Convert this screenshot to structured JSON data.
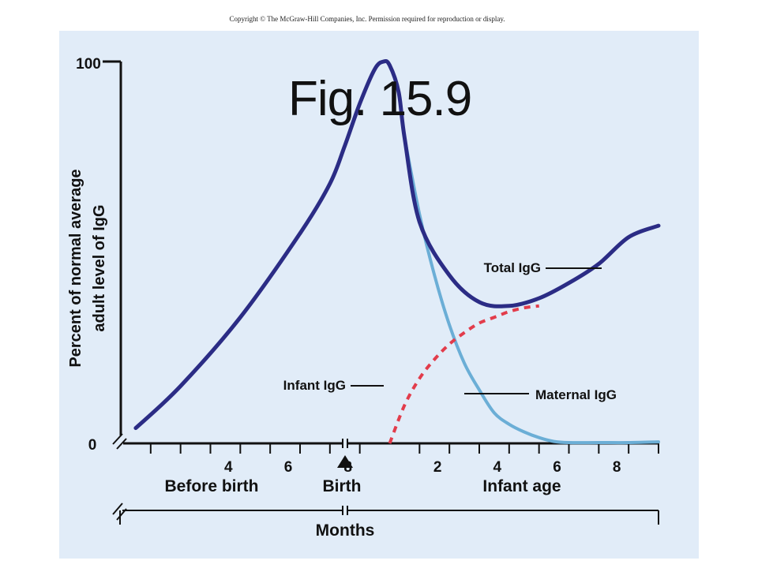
{
  "copyright": "Copyright © The McGraw-Hill Companies, Inc. Permission required for reproduction or display.",
  "figure_label": "Fig. 15.9",
  "colors": {
    "panel": "#e1ecf8",
    "total_igg": "#2b2c85",
    "maternal_igg": "#6baed6",
    "infant_igg": "#e23c4b",
    "axis": "#111111"
  },
  "chart_data": {
    "type": "line",
    "title": "",
    "ylabel": "Percent of normal average adult level of IgG",
    "xlabel": "Months",
    "ylim": [
      0,
      100
    ],
    "y_ticks": [
      "0",
      "100"
    ],
    "x_ticks": [
      "4",
      "6",
      "8",
      "2",
      "4",
      "6",
      "8"
    ],
    "x_axis": {
      "range_months": [
        -9,
        9
      ],
      "segments": [
        "Before birth",
        "Birth",
        "Infant age"
      ],
      "birth_marker": "▲"
    },
    "series": [
      {
        "name": "Total IgG",
        "style": "solid",
        "x": [
          -8.5,
          -7,
          -5,
          -3,
          -2,
          -1.5,
          -1,
          -0.5,
          -0.2,
          0,
          0.3,
          0.5,
          1,
          2,
          3,
          4,
          5,
          6,
          7,
          8,
          9
        ],
        "y": [
          4,
          15,
          33,
          55,
          68,
          78,
          89,
          98,
          100,
          99,
          92,
          80,
          58,
          44,
          37,
          36,
          38,
          42,
          47,
          54,
          57
        ]
      },
      {
        "name": "Maternal IgG",
        "style": "solid",
        "x": [
          0.5,
          1,
          1.5,
          2,
          2.5,
          3,
          3.5,
          4,
          4.5,
          5,
          5.5,
          6,
          7,
          8,
          9
        ],
        "y": [
          80,
          60,
          44,
          31,
          21,
          14,
          8,
          5,
          3,
          1.5,
          0.5,
          0.2,
          0.2,
          0.2,
          0.4
        ]
      },
      {
        "name": "Infant IgG",
        "style": "dashed",
        "x": [
          0,
          0.5,
          1,
          1.5,
          2,
          2.5,
          3,
          3.5,
          4,
          4.5,
          5
        ],
        "y": [
          0,
          10,
          17,
          22,
          26,
          29,
          31.5,
          33,
          34.5,
          35.5,
          36
        ]
      }
    ]
  }
}
